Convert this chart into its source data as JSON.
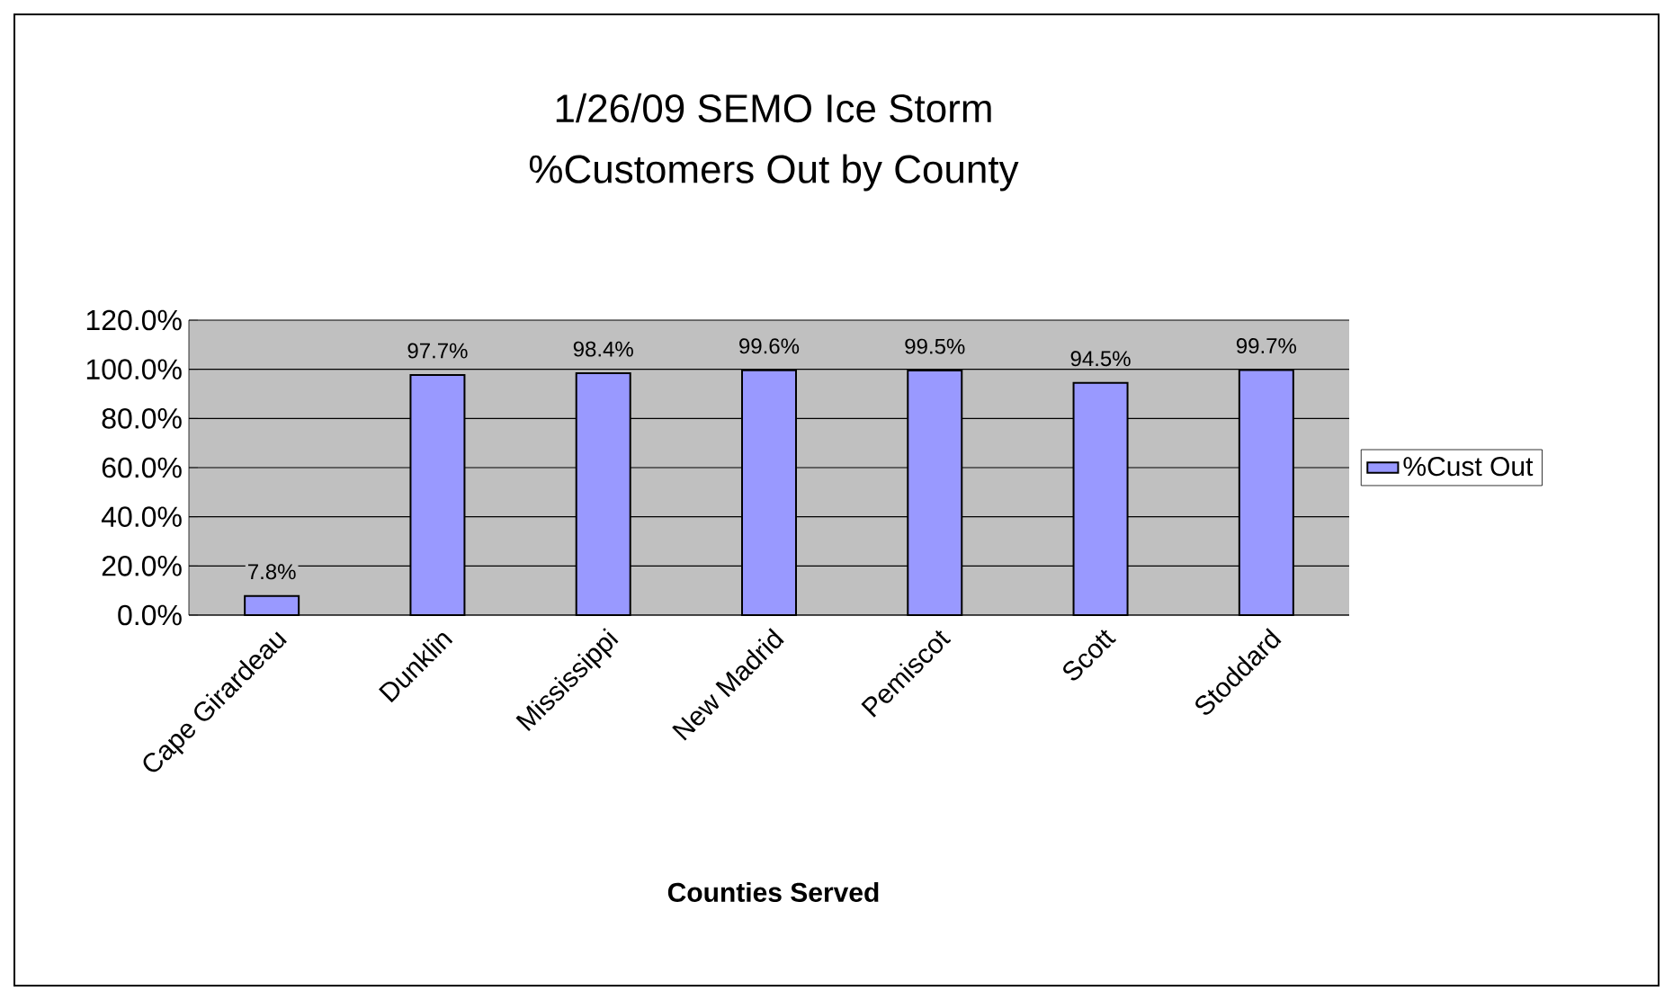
{
  "chart_data": {
    "type": "bar",
    "title": "1/26/09 SEMO Ice Storm",
    "subtitle": "%Customers Out by County",
    "xlabel": "Counties Served",
    "categories": [
      "Cape Girardeau",
      "Dunklin",
      "Mississippi",
      "New Madrid",
      "Pemiscot",
      "Scott",
      "Stoddard"
    ],
    "series": [
      {
        "name": "%Cust Out",
        "color": "#9999ff",
        "values": [
          7.8,
          97.7,
          98.4,
          99.6,
          99.5,
          94.5,
          99.7
        ],
        "value_labels": [
          "7.8%",
          "97.7%",
          "98.4%",
          "99.6%",
          "99.5%",
          "94.5%",
          "99.7%"
        ]
      }
    ],
    "ylim": [
      0,
      120
    ],
    "yticks": [
      {
        "value": 0,
        "label": "0.0%"
      },
      {
        "value": 20,
        "label": "20.0%"
      },
      {
        "value": 40,
        "label": "40.0%"
      },
      {
        "value": 60,
        "label": "60.0%"
      },
      {
        "value": 80,
        "label": "80.0%"
      },
      {
        "value": 100,
        "label": "100.0%"
      },
      {
        "value": 120,
        "label": "120.0%"
      }
    ],
    "grid": "y",
    "legend": "right"
  }
}
